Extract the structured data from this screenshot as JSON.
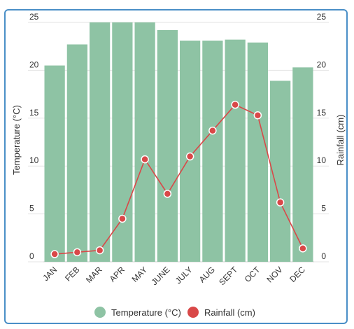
{
  "chart_data": {
    "type": "bar+line",
    "categories": [
      "JAN",
      "FEB",
      "MAR",
      "APR",
      "MAY",
      "JUNE",
      "JULY",
      "AUG",
      "SEPT",
      "OCT",
      "NOV",
      "DEC"
    ],
    "series": [
      {
        "name": "Temperature (°C)",
        "type": "bar",
        "axis": "left",
        "color": "#8ec3a4",
        "values": [
          20.5,
          22.7,
          25.0,
          25.0,
          25.0,
          24.2,
          23.1,
          23.1,
          23.2,
          22.9,
          18.9,
          20.3
        ]
      },
      {
        "name": "Rainfall (cm)",
        "type": "line",
        "axis": "right",
        "color": "#d94848",
        "values": [
          0.8,
          1.0,
          1.2,
          4.5,
          10.7,
          7.1,
          11.0,
          13.7,
          16.4,
          15.3,
          6.2,
          1.4
        ]
      }
    ],
    "ylabel": "Temperature (°C)",
    "y2label": "Rainfall (cm)",
    "ylim": [
      0,
      25
    ],
    "y2lim": [
      0,
      25
    ],
    "yticks": [
      "0",
      "5",
      "10",
      "15",
      "20",
      "25"
    ],
    "y2ticks": [
      "0",
      "5",
      "10",
      "15",
      "20",
      "25"
    ],
    "grid": true,
    "legend_position": "bottom"
  }
}
